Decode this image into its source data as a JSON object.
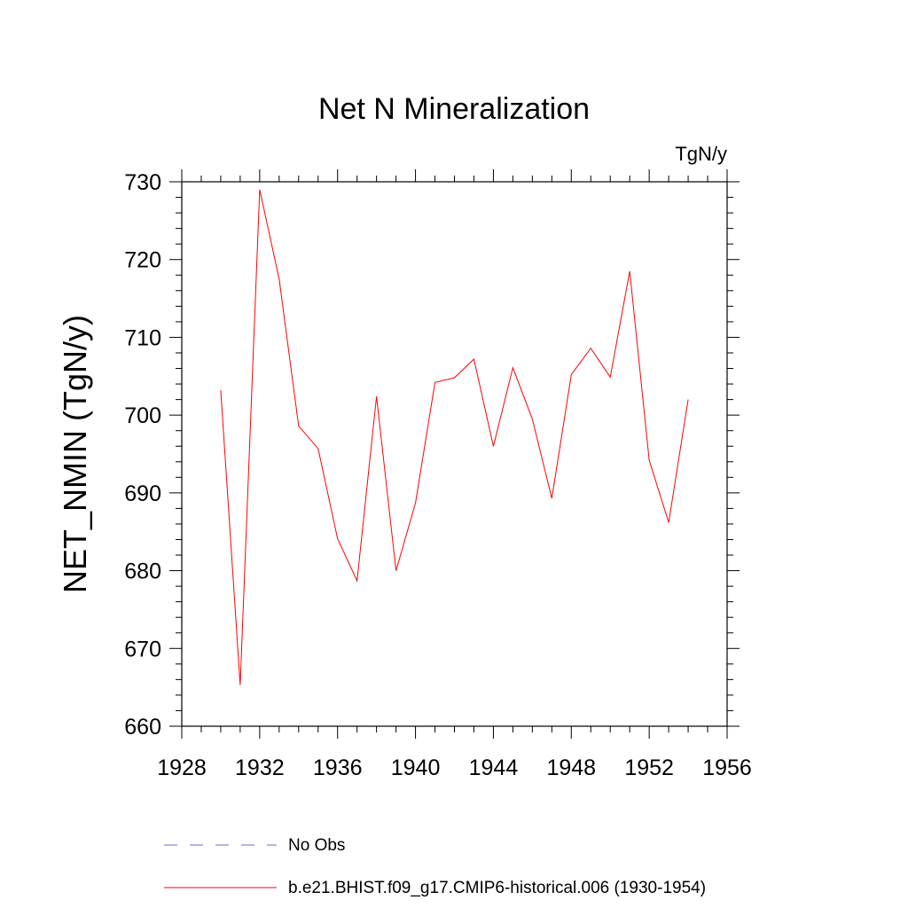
{
  "chart_data": {
    "type": "line",
    "title": "Net N Mineralization",
    "units_label": "TgN/y",
    "ylabel": "NET_NMIN  (TgN/y)",
    "xlabel": "",
    "xlim": [
      1928,
      1956
    ],
    "ylim": [
      660,
      730
    ],
    "x_ticks": [
      1928,
      1932,
      1936,
      1940,
      1944,
      1948,
      1952,
      1956
    ],
    "y_ticks": [
      660,
      670,
      680,
      690,
      700,
      710,
      720,
      730
    ],
    "grid": false,
    "legend_position": "bottom",
    "series": [
      {
        "name": "No Obs",
        "color": "#6b6bd0",
        "style": "dashed",
        "x": [],
        "values": []
      },
      {
        "name": "b.e21.BHIST.f09_g17.CMIP6-historical.006 (1930-1954)",
        "color": "#ff0000",
        "style": "solid",
        "x": [
          1930,
          1931,
          1932,
          1933,
          1934,
          1935,
          1936,
          1937,
          1938,
          1939,
          1940,
          1941,
          1942,
          1943,
          1944,
          1945,
          1946,
          1947,
          1948,
          1949,
          1950,
          1951,
          1952,
          1953,
          1954
        ],
        "values": [
          703.2,
          665.3,
          729.0,
          717.5,
          698.6,
          695.7,
          684.1,
          678.7,
          702.4,
          680.0,
          688.7,
          704.2,
          704.8,
          707.2,
          696.0,
          706.1,
          699.5,
          689.3,
          705.2,
          708.6,
          704.9,
          718.5,
          694.2,
          686.2,
          702.0
        ]
      }
    ]
  }
}
